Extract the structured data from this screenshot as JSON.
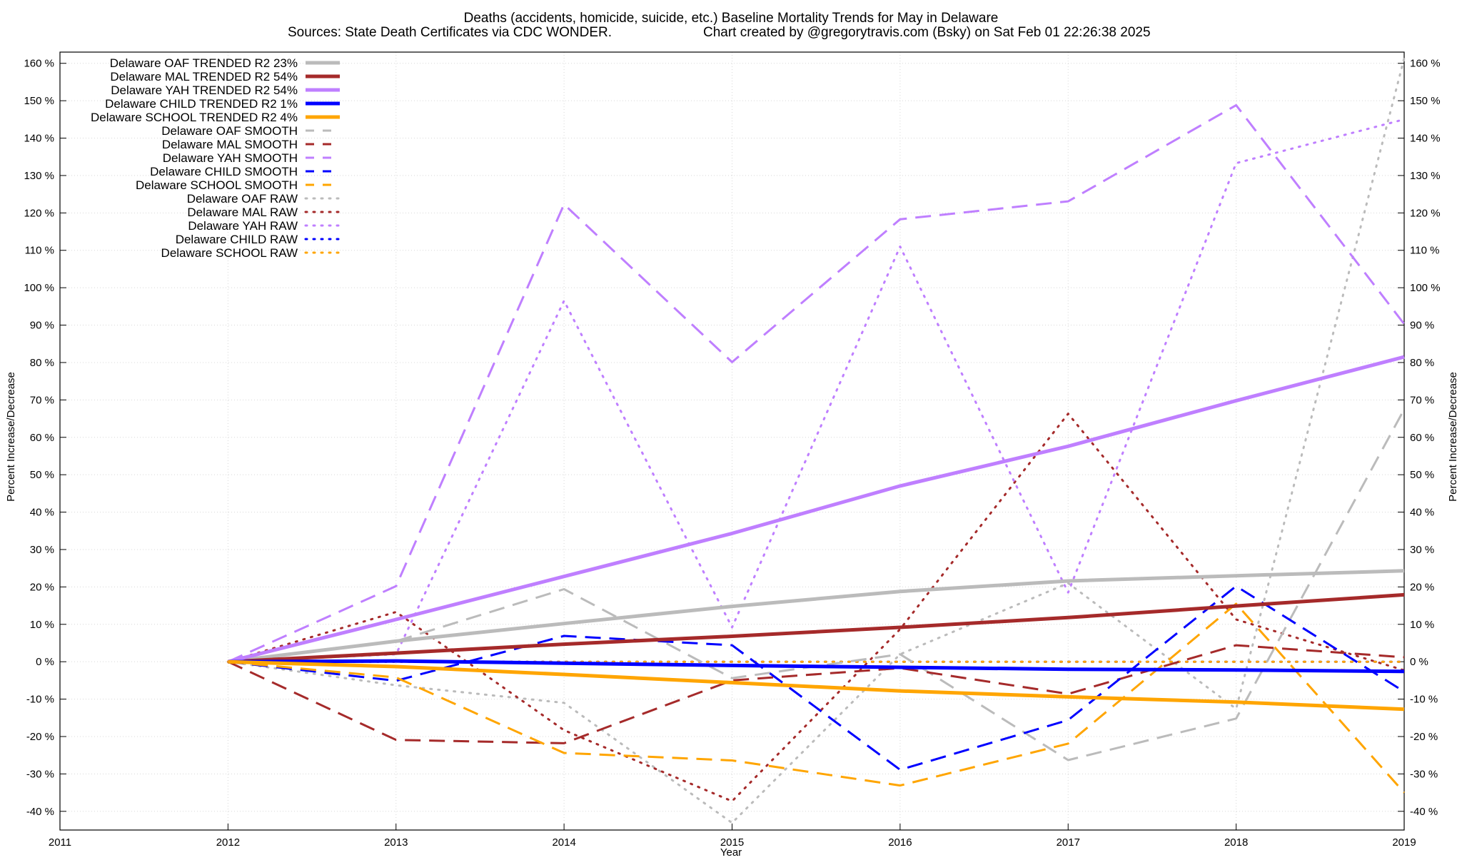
{
  "chart_data": {
    "type": "line",
    "title": "Deaths (accidents, homicide, suicide, etc.)  Baseline Mortality Trends for May in Delaware",
    "subtitle_left": "Sources: State Death Certificates via CDC WONDER.",
    "subtitle_right": "Chart created by @gregorytravis.com (Bsky) on Sat Feb 01 22:26:38 2025",
    "xlabel": "Year",
    "ylabel_left": "Percent Increase/Decrease",
    "ylabel_right": "Percent Increase/Decrease",
    "xlim": [
      2011,
      2019
    ],
    "ylim": [
      -45,
      163
    ],
    "x_ticks": [
      2011,
      2012,
      2013,
      2014,
      2015,
      2016,
      2017,
      2018,
      2019
    ],
    "x_tick_labels": [
      "2011",
      "2012",
      "2013",
      "2014",
      "2015",
      "2016",
      "2017",
      "2018",
      "2019"
    ],
    "y_ticks": [
      -40,
      -30,
      -20,
      -10,
      0,
      10,
      20,
      30,
      40,
      50,
      60,
      70,
      80,
      90,
      100,
      110,
      120,
      130,
      140,
      150,
      160
    ],
    "y_tick_labels": [
      "-40 %",
      "-30 %",
      "-20 %",
      "-10 %",
      "0 %",
      "10 %",
      "20 %",
      "30 %",
      "40 %",
      "50 %",
      "60 %",
      "70 %",
      "80 %",
      "90 %",
      "100 %",
      "110 %",
      "120 %",
      "130 %",
      "140 %",
      "150 %",
      "160 %"
    ],
    "grid": true,
    "legend_position": "top-left",
    "x": [
      2012,
      2013,
      2014,
      2015,
      2016,
      2017,
      2018,
      2019
    ],
    "series": [
      {
        "name": "Delaware OAF TRENDED R2  23%",
        "style": "solid",
        "color": "#bbbbbb",
        "width": 5,
        "values": [
          0,
          5.5,
          10.2,
          14.8,
          18.8,
          21.6,
          23,
          24.3
        ]
      },
      {
        "name": "Delaware MAL TRENDED R2  54%",
        "style": "solid",
        "color": "#a52a2a",
        "width": 5,
        "values": [
          0,
          2.3,
          4.7,
          6.8,
          9.2,
          11.8,
          14.9,
          17.9
        ]
      },
      {
        "name": "Delaware YAH TRENDED R2  54%",
        "style": "solid",
        "color": "#bf7fff",
        "width": 5,
        "values": [
          0,
          11.3,
          22.8,
          34.3,
          47,
          57.6,
          69.8,
          81.5
        ]
      },
      {
        "name": "Delaware CHILD TRENDED R2  1%",
        "style": "solid",
        "color": "#0000ff",
        "width": 5,
        "values": [
          0,
          0.2,
          -0.4,
          -1,
          -1.5,
          -2,
          -2.2,
          -2.6
        ]
      },
      {
        "name": "Delaware SCHOOL TRENDED R2  4%",
        "style": "solid",
        "color": "#ffa500",
        "width": 5,
        "values": [
          0,
          -1.3,
          -3.4,
          -5.6,
          -7.8,
          -9.4,
          -10.8,
          -12.7
        ]
      },
      {
        "name": "Delaware OAF SMOOTH",
        "style": "dashed",
        "color": "#bbbbbb",
        "width": 3,
        "values": [
          0,
          5.5,
          19.4,
          -4.4,
          2,
          -26.3,
          -15.2,
          67.5
        ]
      },
      {
        "name": "Delaware MAL SMOOTH",
        "style": "dashed",
        "color": "#a52a2a",
        "width": 3,
        "values": [
          0,
          -20.9,
          -21.8,
          -5,
          -1.7,
          -8.6,
          4.4,
          1.2
        ]
      },
      {
        "name": "Delaware YAH SMOOTH",
        "style": "dashed",
        "color": "#bf7fff",
        "width": 3,
        "values": [
          0,
          20.2,
          122.3,
          80.1,
          118.3,
          123.1,
          148.8,
          90.3
        ]
      },
      {
        "name": "Delaware CHILD SMOOTH",
        "style": "dashed",
        "color": "#0000ff",
        "width": 3,
        "values": [
          0,
          -5.1,
          6.9,
          4.4,
          -28.9,
          -15.6,
          20.2,
          -8
        ]
      },
      {
        "name": "Delaware SCHOOL SMOOTH",
        "style": "dashed",
        "color": "#ffa500",
        "width": 3,
        "values": [
          0,
          -4.2,
          -24.4,
          -26.4,
          -33.1,
          -21.9,
          15.5,
          -35
        ]
      },
      {
        "name": "Delaware OAF RAW",
        "style": "dotted",
        "color": "#bbbbbb",
        "width": 3,
        "values": [
          0,
          -6.3,
          -11,
          -43.1,
          2,
          21,
          -12.6,
          161.3
        ]
      },
      {
        "name": "Delaware MAL RAW",
        "style": "dotted",
        "color": "#a52a2a",
        "width": 3,
        "values": [
          0,
          13.3,
          -18.3,
          -37.3,
          8.7,
          66.3,
          11.3,
          -2.3
        ]
      },
      {
        "name": "Delaware YAH RAW",
        "style": "dotted",
        "color": "#bf7fff",
        "width": 3,
        "values": [
          0,
          2,
          96.5,
          9.2,
          111,
          18.5,
          133.3,
          145
        ]
      },
      {
        "name": "Delaware CHILD RAW",
        "style": "dotted",
        "color": "#0000ff",
        "width": 3,
        "values": [
          0,
          0,
          0,
          0,
          0,
          0,
          0,
          0
        ]
      },
      {
        "name": "Delaware SCHOOL RAW",
        "style": "dotted",
        "color": "#ffa500",
        "width": 3,
        "values": [
          0,
          0,
          0,
          0,
          0,
          0,
          0,
          0
        ]
      }
    ]
  }
}
